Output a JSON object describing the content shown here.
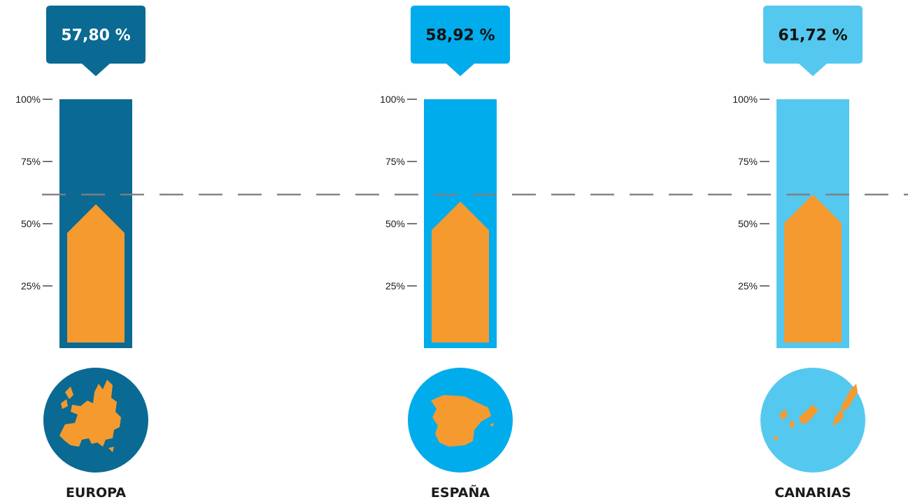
{
  "chart_data": {
    "type": "bar",
    "categories": [
      "EUROPA",
      "ESPAÑA",
      "CANARIAS"
    ],
    "values": [
      57.8,
      58.92,
      61.72
    ],
    "value_labels": [
      "57,80 %",
      "58,92 %",
      "61,72 %"
    ],
    "ylim": [
      0,
      100
    ],
    "yticks": [
      25,
      50,
      75,
      100
    ],
    "ytick_labels": [
      "25%",
      "50%",
      "75%",
      "100%"
    ],
    "reference_line": 61.72,
    "grid": false,
    "colors": {
      "EUROPA": "#0a6a93",
      "ESPAÑA": "#00acec",
      "CANARIAS": "#55c8ef",
      "fill": "#f59a2f",
      "reference_line": "#7f7f7f"
    },
    "icons": [
      "europe-map-icon",
      "spain-map-icon",
      "canary-islands-map-icon"
    ]
  }
}
